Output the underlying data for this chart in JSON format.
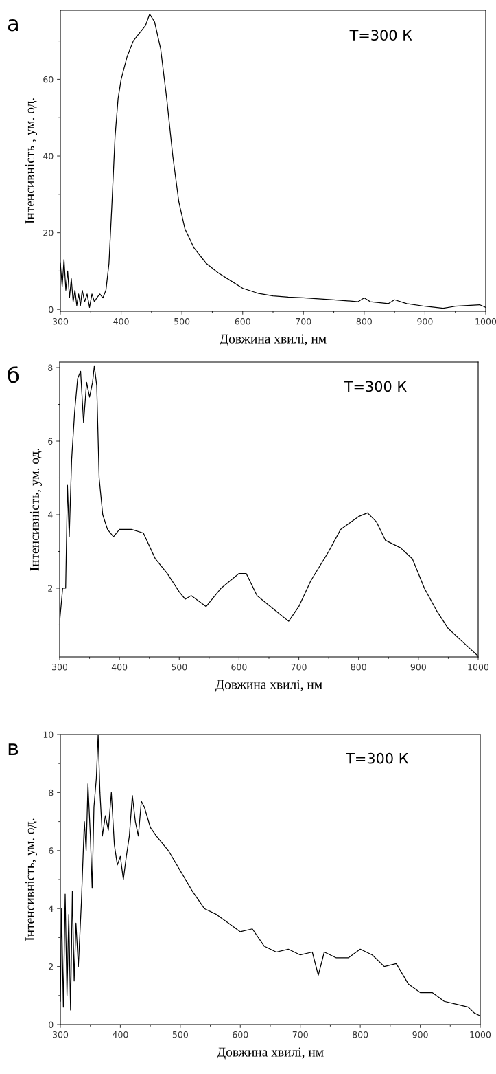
{
  "chart_data": [
    {
      "type": "line",
      "xlabel": "Довжина хвилі, нм",
      "ylabel": "Інтенсивність , ум. од.",
      "annotations": [
        "а",
        "T=300 К"
      ],
      "x": [
        300,
        303,
        306,
        309,
        312,
        315,
        318,
        321,
        324,
        327,
        330,
        333,
        336,
        340,
        344,
        348,
        352,
        356,
        360,
        365,
        370,
        375,
        380,
        385,
        390,
        395,
        400,
        410,
        420,
        430,
        440,
        447,
        455,
        465,
        475,
        485,
        495,
        505,
        520,
        540,
        560,
        580,
        600,
        625,
        650,
        675,
        700,
        750,
        790,
        800,
        810,
        840,
        850,
        870,
        900,
        930,
        950,
        970,
        990,
        1000
      ],
      "values": [
        12,
        6,
        13,
        5,
        10,
        3,
        8,
        2,
        5,
        1,
        4,
        1,
        5,
        2,
        4,
        0.5,
        4,
        2,
        3,
        4,
        3,
        5,
        12,
        28,
        45,
        55,
        60,
        66,
        70,
        72,
        74,
        77,
        75,
        68,
        55,
        40,
        28,
        21,
        16,
        12,
        9.5,
        7.5,
        5.5,
        4.2,
        3.5,
        3.2,
        3,
        2.5,
        2,
        3,
        2,
        1.5,
        2.5,
        1.5,
        0.8,
        0.3,
        0.8,
        1,
        1.2,
        0.5
      ],
      "color": "#000000",
      "xlim": [
        300,
        1000
      ],
      "ylim": [
        -0.5,
        78
      ],
      "xticks": [
        300,
        {
          "value": 350,
          "label": null
        },
        400,
        {
          "value": 450,
          "label": null
        },
        500,
        {
          "value": 550,
          "label": null
        },
        600,
        {
          "value": 650,
          "label": null
        },
        700,
        {
          "value": 750,
          "label": null
        },
        800,
        {
          "value": 850,
          "label": null
        },
        900,
        {
          "value": 950,
          "label": null
        },
        1000
      ],
      "yticks": [
        0,
        {
          "value": 10,
          "label": null
        },
        20,
        {
          "value": 30,
          "label": null
        },
        40,
        {
          "value": 50,
          "label": null
        },
        60,
        {
          "value": 70,
          "label": null
        }
      ],
      "grid": false,
      "legend": false
    },
    {
      "type": "line",
      "xlabel": "Довжина хвилі, нм",
      "ylabel": "Інтенсивність, ум. од.",
      "annotations": [
        "б",
        "T=300 К"
      ],
      "x": [
        300,
        305,
        310,
        313,
        316,
        320,
        325,
        330,
        335,
        340,
        345,
        350,
        355,
        358,
        362,
        366,
        372,
        380,
        390,
        400,
        420,
        440,
        460,
        480,
        500,
        510,
        520,
        545,
        570,
        600,
        612,
        630,
        660,
        683,
        700,
        720,
        750,
        770,
        800,
        815,
        830,
        845,
        870,
        890,
        910,
        930,
        950,
        970,
        990,
        1000
      ],
      "values": [
        1.1,
        2,
        2,
        4.8,
        3.4,
        5.5,
        6.8,
        7.7,
        7.9,
        6.5,
        7.6,
        7.2,
        7.6,
        8.05,
        7.5,
        5,
        4,
        3.6,
        3.4,
        3.6,
        3.6,
        3.5,
        2.8,
        2.4,
        1.9,
        1.7,
        1.8,
        1.5,
        2,
        2.4,
        2.4,
        1.8,
        1.4,
        1.1,
        1.5,
        2.2,
        3,
        3.6,
        3.95,
        4.05,
        3.8,
        3.3,
        3.1,
        2.8,
        2,
        1.4,
        0.9,
        0.6,
        0.3,
        0.15
      ],
      "color": "#000000",
      "xlim": [
        300,
        1000
      ],
      "ylim": [
        0.13,
        8.15
      ],
      "xticks": [
        300,
        {
          "value": 350,
          "label": null
        },
        400,
        {
          "value": 450,
          "label": null
        },
        500,
        {
          "value": 550,
          "label": null
        },
        600,
        {
          "value": 650,
          "label": null
        },
        700,
        {
          "value": 750,
          "label": null
        },
        800,
        {
          "value": 850,
          "label": null
        },
        900,
        {
          "value": 950,
          "label": null
        },
        1000
      ],
      "yticks": [
        {
          "value": 1,
          "label": null
        },
        2,
        {
          "value": 3,
          "label": null
        },
        4,
        {
          "value": 5,
          "label": null
        },
        6,
        {
          "value": 7,
          "label": null
        },
        8
      ],
      "grid": false,
      "legend": false
    },
    {
      "type": "line",
      "xlabel": "Довжина хвилі, нм",
      "ylabel": "Інтенсивність, ум. од.",
      "annotations": [
        "в",
        "T=300 К"
      ],
      "x": [
        300,
        302,
        305,
        308,
        311,
        314,
        317,
        320,
        323,
        326,
        330,
        335,
        340,
        343,
        346,
        350,
        353,
        356,
        360,
        363,
        366,
        370,
        375,
        380,
        385,
        390,
        395,
        400,
        405,
        410,
        415,
        420,
        425,
        430,
        435,
        440,
        450,
        460,
        480,
        500,
        520,
        540,
        560,
        580,
        600,
        620,
        640,
        660,
        680,
        700,
        720,
        730,
        740,
        760,
        780,
        800,
        820,
        840,
        860,
        880,
        900,
        920,
        940,
        960,
        980,
        990,
        1000
      ],
      "values": [
        0.8,
        4,
        0.6,
        4.5,
        1,
        3.8,
        0.5,
        4.6,
        1.5,
        3.5,
        2,
        4.2,
        7,
        6,
        8.3,
        6.5,
        4.7,
        7.5,
        8.5,
        10,
        8,
        6.5,
        7.2,
        6.7,
        8,
        6.2,
        5.5,
        5.8,
        5,
        5.8,
        6.5,
        7.9,
        7,
        6.5,
        7.7,
        7.5,
        6.8,
        6.5,
        6,
        5.3,
        4.6,
        4,
        3.8,
        3.5,
        3.2,
        3.3,
        2.7,
        2.5,
        2.6,
        2.4,
        2.5,
        1.7,
        2.5,
        2.3,
        2.3,
        2.6,
        2.4,
        2,
        2.1,
        1.4,
        1.1,
        1.1,
        0.8,
        0.7,
        0.6,
        0.4,
        0.3
      ],
      "color": "#000000",
      "xlim": [
        300,
        1000
      ],
      "ylim": [
        0,
        10
      ],
      "xticks": [
        300,
        {
          "value": 350,
          "label": null
        },
        400,
        {
          "value": 450,
          "label": null
        },
        500,
        {
          "value": 550,
          "label": null
        },
        600,
        {
          "value": 650,
          "label": null
        },
        700,
        {
          "value": 750,
          "label": null
        },
        800,
        {
          "value": 850,
          "label": null
        },
        900,
        {
          "value": 950,
          "label": null
        },
        1000
      ],
      "yticks": [
        0,
        {
          "value": 1,
          "label": null
        },
        2,
        {
          "value": 3,
          "label": null
        },
        4,
        {
          "value": 5,
          "label": null
        },
        6,
        {
          "value": 7,
          "label": null
        },
        8,
        {
          "value": 9,
          "label": null
        },
        10
      ],
      "grid": false,
      "legend": false
    }
  ]
}
